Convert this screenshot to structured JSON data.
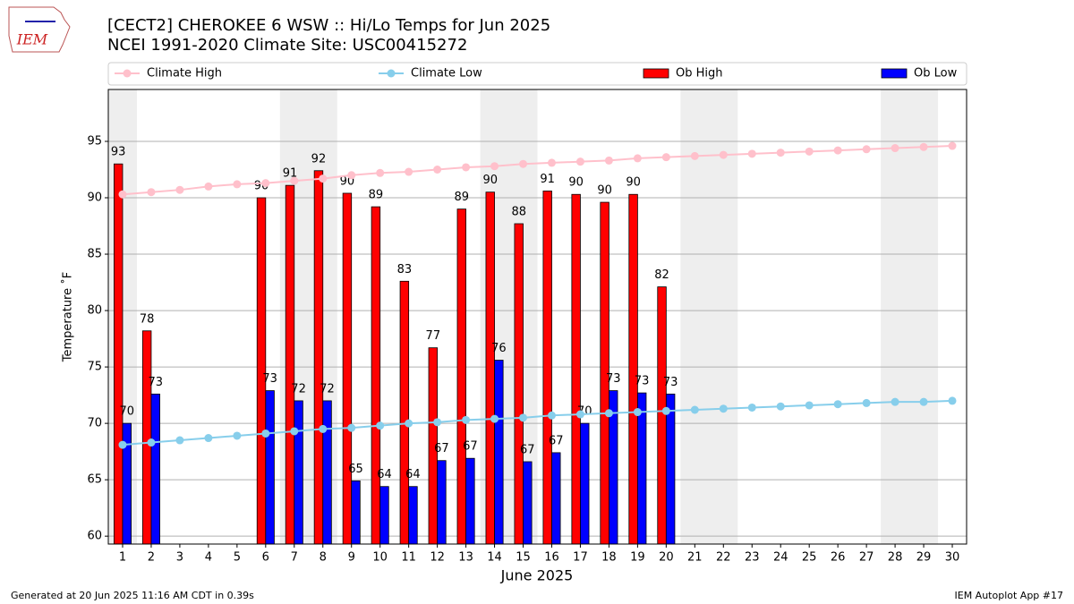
{
  "chart_data": {
    "type": "bar",
    "title": "[CECT2] CHEROKEE 6 WSW :: Hi/Lo Temps for Jun 2025",
    "subtitle": "NCEI 1991-2020 Climate Site: USC00415272",
    "xlabel": "June 2025",
    "ylabel": "Temperature ˚F",
    "x": [
      1,
      2,
      3,
      4,
      5,
      6,
      7,
      8,
      9,
      10,
      11,
      12,
      13,
      14,
      15,
      16,
      17,
      18,
      19,
      20,
      21,
      22,
      23,
      24,
      25,
      26,
      27,
      28,
      29,
      30
    ],
    "xlim": [
      0.5,
      30.5
    ],
    "xticks": [
      1,
      2,
      3,
      4,
      5,
      6,
      7,
      8,
      9,
      10,
      11,
      12,
      13,
      14,
      15,
      16,
      17,
      18,
      19,
      20,
      21,
      22,
      23,
      24,
      25,
      26,
      27,
      28,
      29,
      30
    ],
    "ylim": [
      59.3,
      99.6
    ],
    "yticks": [
      60,
      65,
      70,
      75,
      80,
      85,
      90,
      95
    ],
    "grid": true,
    "weekend_bands": [
      [
        0.5,
        1.5
      ],
      [
        6.5,
        8.5
      ],
      [
        13.5,
        15.5
      ],
      [
        20.5,
        22.5
      ],
      [
        27.5,
        29.5
      ]
    ],
    "series": [
      {
        "name": "Climate High",
        "type": "line",
        "color": "#ffc0cb",
        "values": [
          90.3,
          90.5,
          90.7,
          91.0,
          91.2,
          91.3,
          91.5,
          91.7,
          92.0,
          92.2,
          92.3,
          92.5,
          92.7,
          92.8,
          93.0,
          93.1,
          93.2,
          93.3,
          93.5,
          93.6,
          93.7,
          93.8,
          93.9,
          94.0,
          94.1,
          94.2,
          94.3,
          94.4,
          94.5,
          94.6
        ]
      },
      {
        "name": "Climate Low",
        "type": "line",
        "color": "#87ceeb",
        "values": [
          68.1,
          68.3,
          68.5,
          68.7,
          68.9,
          69.1,
          69.3,
          69.5,
          69.6,
          69.8,
          70.0,
          70.1,
          70.3,
          70.4,
          70.5,
          70.7,
          70.8,
          70.9,
          71.0,
          71.1,
          71.2,
          71.3,
          71.4,
          71.5,
          71.6,
          71.7,
          71.8,
          71.9,
          71.9,
          72.0
        ]
      },
      {
        "name": "Ob High",
        "type": "bar",
        "color": "#ff0000",
        "values": [
          93.0,
          78.2,
          null,
          null,
          null,
          90.0,
          91.1,
          92.4,
          90.4,
          89.2,
          82.6,
          76.7,
          89.0,
          90.5,
          87.7,
          90.6,
          90.3,
          89.6,
          90.3,
          82.1,
          null,
          null,
          null,
          null,
          null,
          null,
          null,
          null,
          null,
          null
        ],
        "value_labels": [
          "93",
          "78",
          null,
          null,
          null,
          "90",
          "91",
          "92",
          "90",
          "89",
          "83",
          "77",
          "89",
          "90",
          "88",
          "91",
          "90",
          "90",
          "90",
          "82",
          null,
          null,
          null,
          null,
          null,
          null,
          null,
          null,
          null,
          null
        ]
      },
      {
        "name": "Ob Low",
        "type": "bar",
        "color": "#0000ff",
        "values": [
          70.0,
          72.6,
          null,
          null,
          null,
          72.9,
          72.0,
          72.0,
          64.9,
          64.4,
          64.4,
          66.7,
          66.9,
          75.6,
          66.6,
          67.4,
          70.0,
          72.9,
          72.7,
          72.6,
          null,
          null,
          null,
          null,
          null,
          null,
          null,
          null,
          null,
          null
        ],
        "value_labels": [
          "70",
          "73",
          null,
          null,
          null,
          "73",
          "72",
          "72",
          "65",
          "64",
          "64",
          "67",
          "67",
          "76",
          "67",
          "67",
          "70",
          "73",
          "73",
          "73",
          null,
          null,
          null,
          null,
          null,
          null,
          null,
          null,
          null,
          null
        ]
      }
    ]
  },
  "logo": "IEM",
  "footer_left": "Generated at 20 Jun 2025 11:16 AM CDT in 0.39s",
  "footer_right": "IEM Autoplot App #17"
}
